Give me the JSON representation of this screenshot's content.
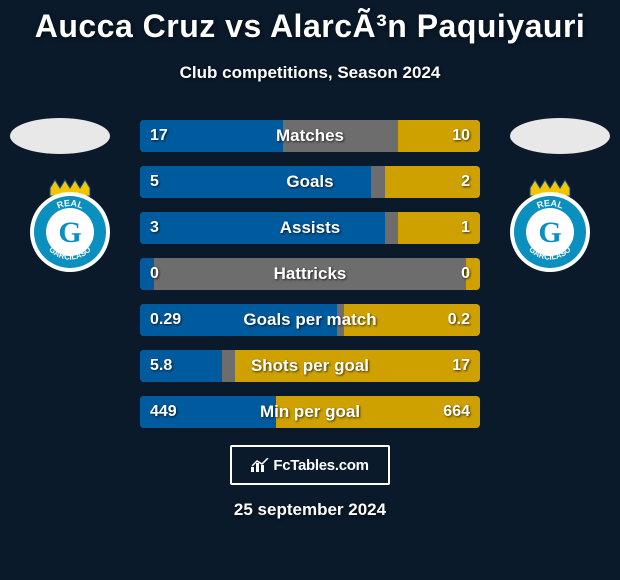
{
  "header": {
    "title": "Aucca Cruz vs AlarcÃ³n Paquiyauri",
    "subtitle": "Club competitions, Season 2024",
    "title_fontsize": 32,
    "subtitle_fontsize": 17,
    "title_color": "#ffffff"
  },
  "background_color": "#0a1a2a",
  "avatars": {
    "placeholder_color": "#e8e8e8"
  },
  "club_logo": {
    "circle_outer_fill": "#ffffff",
    "circle_inner_fill": "#0a8fbf",
    "crown_fill": "#f2c500",
    "letter": "G",
    "letter_color": "#0a8fbf",
    "ribbon_text_top": "REAL",
    "ribbon_text_bottom": "GARCILASO",
    "ribbon_color": "#0a4a8f"
  },
  "stats": {
    "track_color": "#6d6d6d",
    "left_bar_color": "#005a9e",
    "right_bar_color": "#cfa100",
    "label_fontsize": 17,
    "value_fontsize": 16,
    "rows": [
      {
        "label": "Matches",
        "left": "17",
        "right": "10",
        "left_pct": 42,
        "right_pct": 24
      },
      {
        "label": "Goals",
        "left": "5",
        "right": "2",
        "left_pct": 68,
        "right_pct": 28
      },
      {
        "label": "Assists",
        "left": "3",
        "right": "1",
        "left_pct": 72,
        "right_pct": 24
      },
      {
        "label": "Hattricks",
        "left": "0",
        "right": "0",
        "left_pct": 4,
        "right_pct": 4
      },
      {
        "label": "Goals per match",
        "left": "0.29",
        "right": "0.2",
        "left_pct": 58,
        "right_pct": 40
      },
      {
        "label": "Shots per goal",
        "left": "5.8",
        "right": "17",
        "left_pct": 24,
        "right_pct": 72
      },
      {
        "label": "Min per goal",
        "left": "449",
        "right": "664",
        "left_pct": 40,
        "right_pct": 60
      }
    ]
  },
  "brand": {
    "text": "FcTables.com",
    "border_color": "#ffffff"
  },
  "footer": {
    "date": "25 september 2024"
  }
}
